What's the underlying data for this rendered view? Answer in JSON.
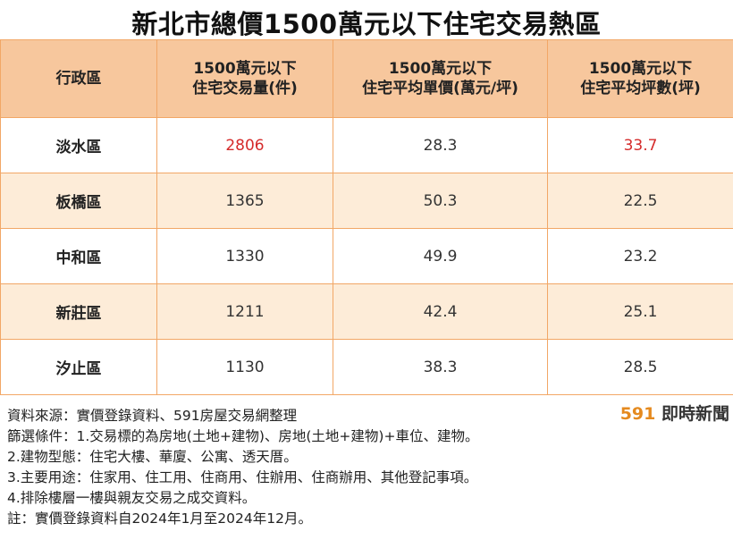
{
  "title": "新北市總價1500萬元以下住宅交易熱區",
  "chart_data": {
    "type": "table",
    "columns": [
      {
        "line1": "行政區",
        "line2": ""
      },
      {
        "line1": "1500萬元以下",
        "line2": "住宅交易量(件)"
      },
      {
        "line1": "1500萬元以下",
        "line2": "住宅平均單價(萬元/坪)"
      },
      {
        "line1": "1500萬元以下",
        "line2": "住宅平均坪數(坪)"
      }
    ],
    "rows": [
      {
        "district": "淡水區",
        "volume": "2806",
        "unit_price": "28.3",
        "avg_ping": "33.7"
      },
      {
        "district": "板橋區",
        "volume": "1365",
        "unit_price": "50.3",
        "avg_ping": "22.5"
      },
      {
        "district": "中和區",
        "volume": "1330",
        "unit_price": "49.9",
        "avg_ping": "23.2"
      },
      {
        "district": "新莊區",
        "volume": "1211",
        "unit_price": "42.4",
        "avg_ping": "25.1"
      },
      {
        "district": "汐止區",
        "volume": "1130",
        "unit_price": "38.3",
        "avg_ping": "28.5"
      }
    ],
    "highlight_color": "#d52b2b",
    "header_color": "#f7c79d",
    "stripe_color": "#fdecd8",
    "border_color": "#f2a766"
  },
  "notes": [
    "資料來源：實價登錄資料、591房屋交易網整理",
    "篩選條件：1.交易標的為房地(土地+建物)、房地(土地+建物)+車位、建物。",
    "2.建物型態：住宅大樓、華廈、公寓、透天厝。",
    "3.主要用途：住家用、住工用、住商用、住辦用、住商辦用、其他登記事項。",
    "4.排除樓層一樓與親友交易之成交資料。",
    "註：實價登錄資料自2024年1月至2024年12月。"
  ],
  "brand": {
    "number": "591",
    "text": "即時新聞"
  }
}
